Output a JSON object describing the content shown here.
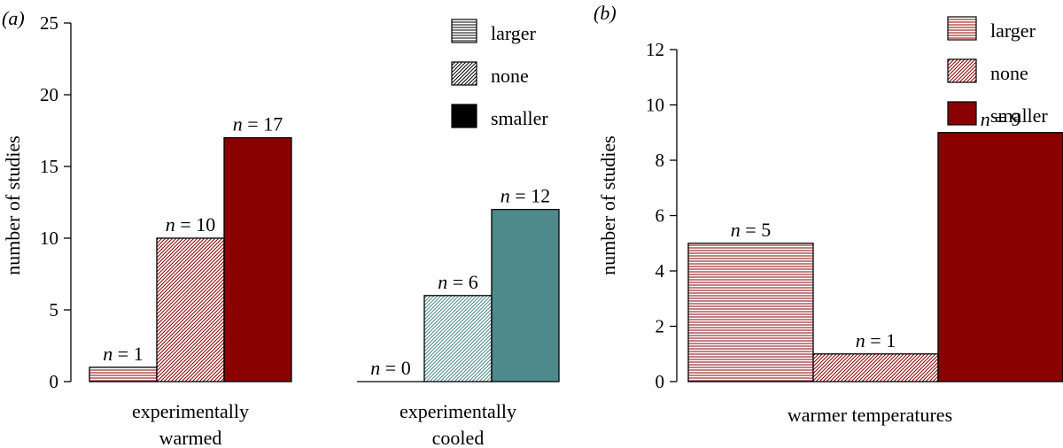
{
  "figure": {
    "legend": {
      "items": [
        {
          "label": "larger",
          "pattern": "horizontal"
        },
        {
          "label": "none",
          "pattern": "diagonal"
        },
        {
          "label": "smaller",
          "pattern": "solid"
        }
      ]
    }
  },
  "colors": {
    "red": "#8b0000",
    "teal": "#4e8a8b",
    "black": "#000000"
  },
  "chart_data": [
    {
      "type": "bar",
      "panel_label": "(a)",
      "ylabel": "number of studies",
      "ylim": [
        0,
        25
      ],
      "yticks": [
        0,
        5,
        10,
        15,
        20,
        25
      ],
      "groups": [
        {
          "label": "experimentally warmed",
          "label_lines": [
            "experimentally",
            "warmed"
          ],
          "color": "red",
          "categories": [
            "larger",
            "none",
            "smaller"
          ],
          "values": [
            1,
            10,
            17
          ],
          "data_labels": [
            "n = 1",
            "n = 10",
            "n = 17"
          ]
        },
        {
          "label": "experimentally cooled",
          "label_lines": [
            "experimentally",
            "cooled"
          ],
          "color": "teal",
          "categories": [
            "larger",
            "none",
            "smaller"
          ],
          "values": [
            0,
            6,
            12
          ],
          "data_labels": [
            "n = 0",
            "n = 6",
            "n = 12"
          ]
        }
      ],
      "legend": [
        "larger",
        "none",
        "smaller"
      ],
      "legend_color": "black",
      "legend_position": "top-right"
    },
    {
      "type": "bar",
      "panel_label": "(b)",
      "ylabel": "number of studies",
      "ylim": [
        0,
        12
      ],
      "yticks": [
        0,
        2,
        4,
        6,
        8,
        10,
        12
      ],
      "groups": [
        {
          "label": "warmer temperatures",
          "label_lines": [
            "warmer temperatures"
          ],
          "color": "red",
          "categories": [
            "larger",
            "none",
            "smaller"
          ],
          "values": [
            5,
            1,
            9
          ],
          "data_labels": [
            "n = 5",
            "n = 1",
            "n = 9"
          ]
        }
      ],
      "legend": [
        "larger",
        "none",
        "smaller"
      ],
      "legend_color": "red",
      "legend_position": "top-right"
    }
  ]
}
